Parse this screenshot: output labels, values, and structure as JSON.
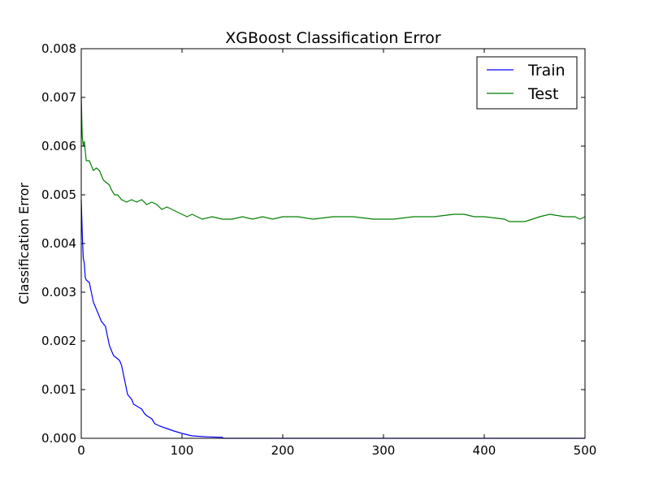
{
  "chart_data": {
    "type": "line",
    "title": "XGBoost Classification Error",
    "xlabel": "",
    "ylabel": "Classification Error",
    "xlim": [
      0,
      500
    ],
    "ylim": [
      0,
      0.008
    ],
    "x_ticks": [
      "0",
      "100",
      "200",
      "300",
      "400",
      "500"
    ],
    "y_ticks": [
      "0.000",
      "0.001",
      "0.002",
      "0.003",
      "0.004",
      "0.005",
      "0.006",
      "0.007",
      "0.008"
    ],
    "grid": false,
    "legend_position": "top-right",
    "series": [
      {
        "name": "Train",
        "color": "#0000ff",
        "points": [
          [
            0,
            0.0049
          ],
          [
            1,
            0.0042
          ],
          [
            2,
            0.0037
          ],
          [
            3,
            0.0036
          ],
          [
            4,
            0.0033
          ],
          [
            5,
            0.00325
          ],
          [
            8,
            0.0032
          ],
          [
            10,
            0.003
          ],
          [
            12,
            0.0028
          ],
          [
            14,
            0.0027
          ],
          [
            16,
            0.0026
          ],
          [
            18,
            0.0025
          ],
          [
            20,
            0.0024
          ],
          [
            22,
            0.00235
          ],
          [
            24,
            0.0023
          ],
          [
            26,
            0.0021
          ],
          [
            28,
            0.0019
          ],
          [
            30,
            0.0018
          ],
          [
            32,
            0.0017
          ],
          [
            35,
            0.00165
          ],
          [
            38,
            0.0016
          ],
          [
            40,
            0.0015
          ],
          [
            42,
            0.0013
          ],
          [
            44,
            0.0011
          ],
          [
            46,
            0.0009
          ],
          [
            48,
            0.00085
          ],
          [
            50,
            0.0008
          ],
          [
            52,
            0.0007
          ],
          [
            56,
            0.00065
          ],
          [
            60,
            0.0006
          ],
          [
            63,
            0.0005
          ],
          [
            66,
            0.00045
          ],
          [
            70,
            0.0004
          ],
          [
            73,
            0.0003
          ],
          [
            78,
            0.00025
          ],
          [
            85,
            0.0002
          ],
          [
            92,
            0.00015
          ],
          [
            100,
            0.0001
          ],
          [
            110,
            5e-05
          ],
          [
            125,
            3e-05
          ],
          [
            140,
            2e-05
          ],
          [
            141,
            0.0
          ],
          [
            200,
            0.0
          ],
          [
            300,
            0.0
          ],
          [
            400,
            0.0
          ],
          [
            500,
            0.0
          ]
        ]
      },
      {
        "name": "Test",
        "color": "#008000",
        "points": [
          [
            0,
            0.007
          ],
          [
            1,
            0.0062
          ],
          [
            2,
            0.006
          ],
          [
            3,
            0.0061
          ],
          [
            4,
            0.0059
          ],
          [
            5,
            0.0057
          ],
          [
            8,
            0.0057
          ],
          [
            10,
            0.0056
          ],
          [
            12,
            0.0055
          ],
          [
            15,
            0.00555
          ],
          [
            18,
            0.0055
          ],
          [
            20,
            0.0054
          ],
          [
            22,
            0.0053
          ],
          [
            25,
            0.00525
          ],
          [
            28,
            0.0052
          ],
          [
            30,
            0.0051
          ],
          [
            33,
            0.005
          ],
          [
            36,
            0.005
          ],
          [
            40,
            0.0049
          ],
          [
            45,
            0.00485
          ],
          [
            50,
            0.0049
          ],
          [
            55,
            0.00485
          ],
          [
            60,
            0.0049
          ],
          [
            65,
            0.0048
          ],
          [
            70,
            0.00485
          ],
          [
            75,
            0.0048
          ],
          [
            80,
            0.0047
          ],
          [
            85,
            0.00475
          ],
          [
            90,
            0.0047
          ],
          [
            95,
            0.00465
          ],
          [
            100,
            0.0046
          ],
          [
            105,
            0.00455
          ],
          [
            110,
            0.0046
          ],
          [
            115,
            0.00455
          ],
          [
            120,
            0.0045
          ],
          [
            130,
            0.00455
          ],
          [
            140,
            0.0045
          ],
          [
            150,
            0.0045
          ],
          [
            160,
            0.00455
          ],
          [
            170,
            0.0045
          ],
          [
            180,
            0.00455
          ],
          [
            190,
            0.0045
          ],
          [
            200,
            0.00455
          ],
          [
            215,
            0.00455
          ],
          [
            230,
            0.0045
          ],
          [
            250,
            0.00455
          ],
          [
            270,
            0.00455
          ],
          [
            290,
            0.0045
          ],
          [
            310,
            0.0045
          ],
          [
            330,
            0.00455
          ],
          [
            350,
            0.00455
          ],
          [
            370,
            0.0046
          ],
          [
            380,
            0.0046
          ],
          [
            390,
            0.00455
          ],
          [
            400,
            0.00455
          ],
          [
            420,
            0.0045
          ],
          [
            425,
            0.00445
          ],
          [
            440,
            0.00445
          ],
          [
            448,
            0.0045
          ],
          [
            455,
            0.00455
          ],
          [
            465,
            0.0046
          ],
          [
            480,
            0.00455
          ],
          [
            490,
            0.00455
          ],
          [
            495,
            0.0045
          ],
          [
            500,
            0.00455
          ]
        ]
      }
    ]
  }
}
